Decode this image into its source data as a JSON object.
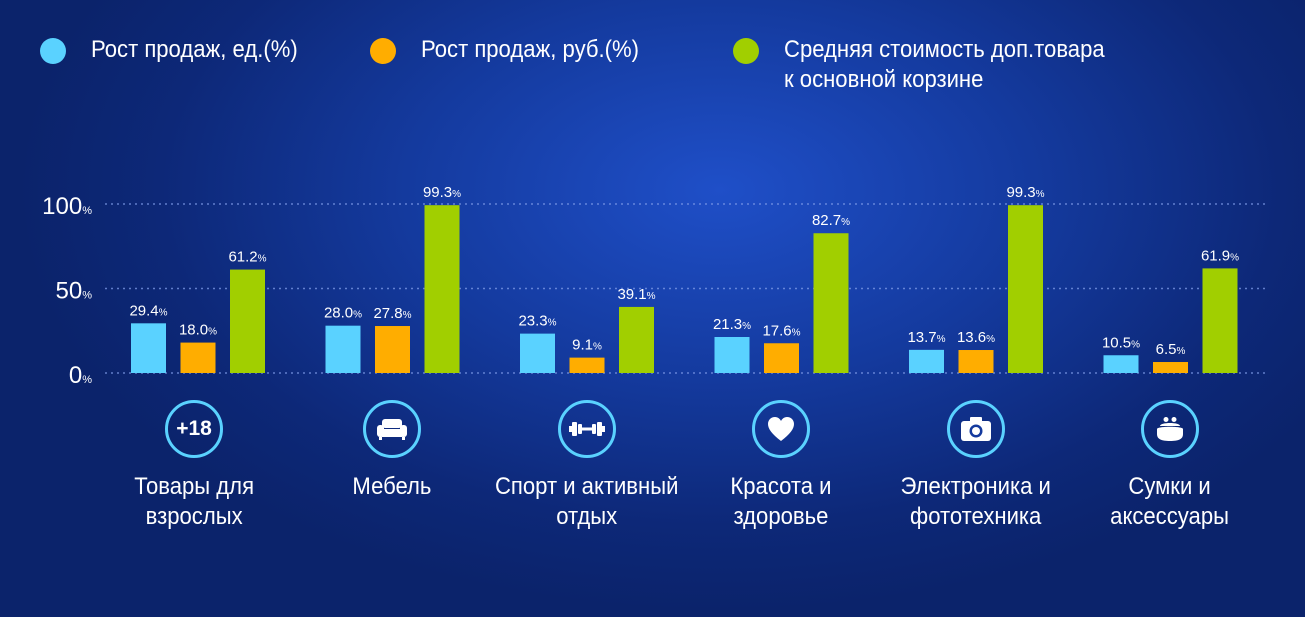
{
  "legend": [
    {
      "label": "Рост продаж, ед.(%)",
      "color": "#5ad2ff"
    },
    {
      "label": "Рост продаж, руб.(%)",
      "color": "#ffad00"
    },
    {
      "label": "Средняя стоимость доп.товара\nк основной корзине",
      "color": "#a1cf00"
    }
  ],
  "categories": [
    {
      "label": "Товары для\nвзрослых",
      "icon": "plus-18-icon",
      "icon_text": "+18"
    },
    {
      "label": "Мебель",
      "icon": "sofa-icon"
    },
    {
      "label": "Спорт и активный\nотдых",
      "icon": "dumbbell-icon"
    },
    {
      "label": "Красота и\nздоровье",
      "icon": "heart-icon"
    },
    {
      "label": "Электроника и\nфототехника",
      "icon": "camera-icon"
    },
    {
      "label": "Сумки и\nаксессуары",
      "icon": "purse-icon"
    }
  ],
  "chart_data": {
    "type": "bar",
    "categories": [
      "Товары для взрослых",
      "Мебель",
      "Спорт и активный отдых",
      "Красота и здоровье",
      "Электроника и фототехника",
      "Сумки и аксессуары"
    ],
    "series": [
      {
        "name": "Рост продаж, ед.(%)",
        "color": "#5ad2ff",
        "values": [
          29.4,
          28.0,
          23.3,
          21.3,
          13.7,
          10.5
        ]
      },
      {
        "name": "Рост продаж, руб.(%)",
        "color": "#ffad00",
        "values": [
          18.0,
          27.8,
          9.1,
          17.6,
          13.6,
          6.5
        ]
      },
      {
        "name": "Средняя стоимость доп.товара к основной корзине",
        "color": "#a1cf00",
        "values": [
          61.2,
          99.3,
          39.1,
          82.7,
          99.3,
          61.9
        ]
      }
    ],
    "ylim": [
      0,
      100
    ],
    "yticks": [
      0,
      50,
      100
    ],
    "value_suffix": "%",
    "grid": true,
    "legend_position": "top"
  }
}
